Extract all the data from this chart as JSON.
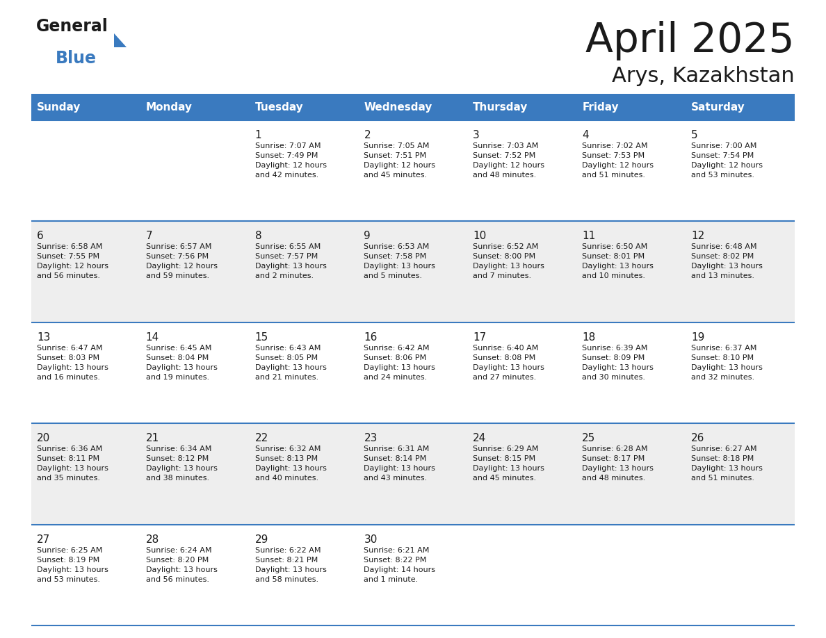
{
  "title": "April 2025",
  "subtitle": "Arys, Kazakhstan",
  "header_color": "#3a7abf",
  "header_text_color": "#ffffff",
  "bg_color": "#ffffff",
  "cell_bg_even": "#eeeeee",
  "cell_bg_odd": "#ffffff",
  "days_of_week": [
    "Sunday",
    "Monday",
    "Tuesday",
    "Wednesday",
    "Thursday",
    "Friday",
    "Saturday"
  ],
  "weeks": [
    [
      {
        "day": "",
        "info": ""
      },
      {
        "day": "",
        "info": ""
      },
      {
        "day": "1",
        "info": "Sunrise: 7:07 AM\nSunset: 7:49 PM\nDaylight: 12 hours\nand 42 minutes."
      },
      {
        "day": "2",
        "info": "Sunrise: 7:05 AM\nSunset: 7:51 PM\nDaylight: 12 hours\nand 45 minutes."
      },
      {
        "day": "3",
        "info": "Sunrise: 7:03 AM\nSunset: 7:52 PM\nDaylight: 12 hours\nand 48 minutes."
      },
      {
        "day": "4",
        "info": "Sunrise: 7:02 AM\nSunset: 7:53 PM\nDaylight: 12 hours\nand 51 minutes."
      },
      {
        "day": "5",
        "info": "Sunrise: 7:00 AM\nSunset: 7:54 PM\nDaylight: 12 hours\nand 53 minutes."
      }
    ],
    [
      {
        "day": "6",
        "info": "Sunrise: 6:58 AM\nSunset: 7:55 PM\nDaylight: 12 hours\nand 56 minutes."
      },
      {
        "day": "7",
        "info": "Sunrise: 6:57 AM\nSunset: 7:56 PM\nDaylight: 12 hours\nand 59 minutes."
      },
      {
        "day": "8",
        "info": "Sunrise: 6:55 AM\nSunset: 7:57 PM\nDaylight: 13 hours\nand 2 minutes."
      },
      {
        "day": "9",
        "info": "Sunrise: 6:53 AM\nSunset: 7:58 PM\nDaylight: 13 hours\nand 5 minutes."
      },
      {
        "day": "10",
        "info": "Sunrise: 6:52 AM\nSunset: 8:00 PM\nDaylight: 13 hours\nand 7 minutes."
      },
      {
        "day": "11",
        "info": "Sunrise: 6:50 AM\nSunset: 8:01 PM\nDaylight: 13 hours\nand 10 minutes."
      },
      {
        "day": "12",
        "info": "Sunrise: 6:48 AM\nSunset: 8:02 PM\nDaylight: 13 hours\nand 13 minutes."
      }
    ],
    [
      {
        "day": "13",
        "info": "Sunrise: 6:47 AM\nSunset: 8:03 PM\nDaylight: 13 hours\nand 16 minutes."
      },
      {
        "day": "14",
        "info": "Sunrise: 6:45 AM\nSunset: 8:04 PM\nDaylight: 13 hours\nand 19 minutes."
      },
      {
        "day": "15",
        "info": "Sunrise: 6:43 AM\nSunset: 8:05 PM\nDaylight: 13 hours\nand 21 minutes."
      },
      {
        "day": "16",
        "info": "Sunrise: 6:42 AM\nSunset: 8:06 PM\nDaylight: 13 hours\nand 24 minutes."
      },
      {
        "day": "17",
        "info": "Sunrise: 6:40 AM\nSunset: 8:08 PM\nDaylight: 13 hours\nand 27 minutes."
      },
      {
        "day": "18",
        "info": "Sunrise: 6:39 AM\nSunset: 8:09 PM\nDaylight: 13 hours\nand 30 minutes."
      },
      {
        "day": "19",
        "info": "Sunrise: 6:37 AM\nSunset: 8:10 PM\nDaylight: 13 hours\nand 32 minutes."
      }
    ],
    [
      {
        "day": "20",
        "info": "Sunrise: 6:36 AM\nSunset: 8:11 PM\nDaylight: 13 hours\nand 35 minutes."
      },
      {
        "day": "21",
        "info": "Sunrise: 6:34 AM\nSunset: 8:12 PM\nDaylight: 13 hours\nand 38 minutes."
      },
      {
        "day": "22",
        "info": "Sunrise: 6:32 AM\nSunset: 8:13 PM\nDaylight: 13 hours\nand 40 minutes."
      },
      {
        "day": "23",
        "info": "Sunrise: 6:31 AM\nSunset: 8:14 PM\nDaylight: 13 hours\nand 43 minutes."
      },
      {
        "day": "24",
        "info": "Sunrise: 6:29 AM\nSunset: 8:15 PM\nDaylight: 13 hours\nand 45 minutes."
      },
      {
        "day": "25",
        "info": "Sunrise: 6:28 AM\nSunset: 8:17 PM\nDaylight: 13 hours\nand 48 minutes."
      },
      {
        "day": "26",
        "info": "Sunrise: 6:27 AM\nSunset: 8:18 PM\nDaylight: 13 hours\nand 51 minutes."
      }
    ],
    [
      {
        "day": "27",
        "info": "Sunrise: 6:25 AM\nSunset: 8:19 PM\nDaylight: 13 hours\nand 53 minutes."
      },
      {
        "day": "28",
        "info": "Sunrise: 6:24 AM\nSunset: 8:20 PM\nDaylight: 13 hours\nand 56 minutes."
      },
      {
        "day": "29",
        "info": "Sunrise: 6:22 AM\nSunset: 8:21 PM\nDaylight: 13 hours\nand 58 minutes."
      },
      {
        "day": "30",
        "info": "Sunrise: 6:21 AM\nSunset: 8:22 PM\nDaylight: 14 hours\nand 1 minute."
      },
      {
        "day": "",
        "info": ""
      },
      {
        "day": "",
        "info": ""
      },
      {
        "day": "",
        "info": ""
      }
    ]
  ]
}
